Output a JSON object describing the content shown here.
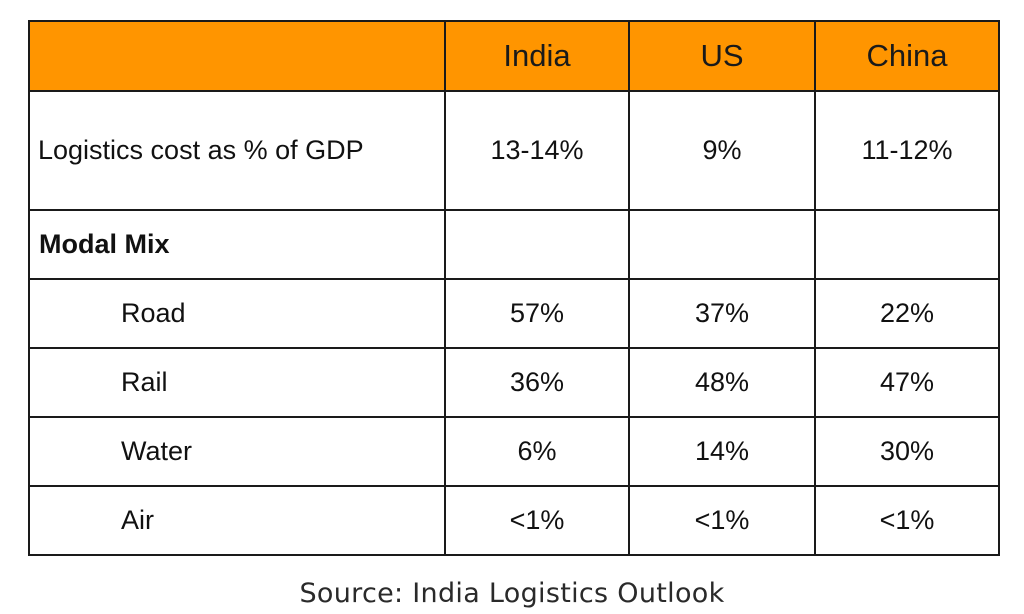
{
  "table": {
    "header": {
      "corner": "",
      "columns": [
        "India",
        "US",
        "China"
      ]
    },
    "rows": [
      {
        "label": "Logistics cost as % of GDP",
        "style": "normal",
        "values": [
          "13-14%",
          "9%",
          "11-12%"
        ]
      },
      {
        "label": "Modal Mix",
        "style": "bold",
        "values": [
          "",
          "",
          ""
        ]
      },
      {
        "label": "Road",
        "style": "indent",
        "values": [
          "57%",
          "37%",
          "22%"
        ]
      },
      {
        "label": "Rail",
        "style": "indent",
        "values": [
          "36%",
          "48%",
          "47%"
        ]
      },
      {
        "label": "Water",
        "style": "indent",
        "values": [
          "6%",
          "14%",
          "30%"
        ]
      },
      {
        "label": "Air",
        "style": "indent",
        "values": [
          "<1%",
          "<1%",
          "<1%"
        ]
      }
    ]
  },
  "source": "Source: India Logistics Outlook",
  "colors": {
    "header_background": "#ff9500",
    "border": "#1a1a1a"
  }
}
